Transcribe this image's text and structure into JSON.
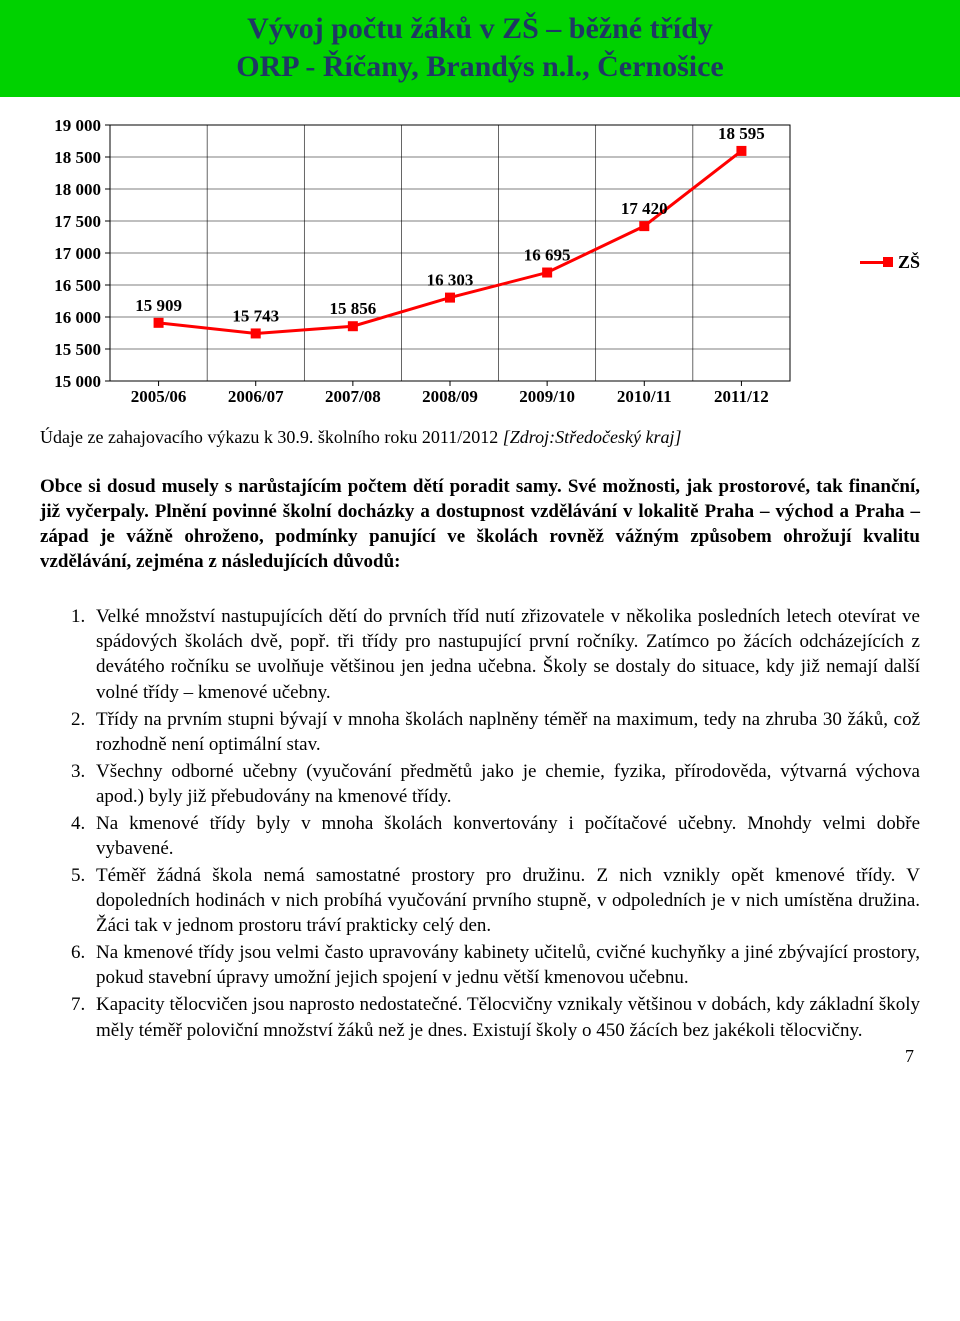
{
  "title": {
    "line1": "Vývoj počtu žáků v ZŠ – běžné třídy",
    "line2": "ORP - Říčany, Brandýs n.l., Černošice",
    "bg_color": "#00d200",
    "text_color": "#1f3864"
  },
  "chart": {
    "type": "line",
    "series_name": "ZŠ",
    "categories": [
      "2005/06",
      "2006/07",
      "2007/08",
      "2008/09",
      "2009/10",
      "2010/11",
      "2011/12"
    ],
    "values": [
      15909,
      15743,
      15856,
      16303,
      16695,
      17420,
      18595
    ],
    "value_labels": [
      "15 909",
      "15 743",
      "15 856",
      "16 303",
      "16 695",
      "17 420",
      "18 595"
    ],
    "ylim": [
      15000,
      19000
    ],
    "ytick_step": 500,
    "ytick_labels": [
      "15 000",
      "15 500",
      "16 000",
      "16 500",
      "17 000",
      "17 500",
      "18 000",
      "18 500",
      "19 000"
    ],
    "line_color": "#ff0000",
    "marker_color": "#ff0000",
    "marker_shape": "square",
    "marker_size": 10,
    "line_width": 3,
    "grid_color": "#000000",
    "background_color": "#ffffff",
    "axis_font_size": 17,
    "label_font_size": 17
  },
  "source": {
    "prefix": "Údaje ze zahajovacího výkazu k 30.9. školního roku 2011/2012 ",
    "italic": "[Zdroj:Středočeský kraj]"
  },
  "intro": "Obce si dosud musely s narůstajícím počtem dětí poradit samy. Své možnosti, jak prostorové, tak finanční, již vyčerpaly. Plnění povinné školní docházky a dostupnost vzdělávání v lokalitě Praha – východ a Praha – západ je vážně ohroženo, podmínky panující ve školách rovněž vážným způsobem ohrožují kvalitu vzdělávání, zejména z následujících důvodů:",
  "reasons": [
    "Velké množství nastupujících dětí do prvních tříd nutí zřizovatele v několika posledních letech otevírat ve spádových školách dvě, popř. tři třídy pro nastupující první ročníky. Zatímco po žácích odcházejících z devátého ročníku se uvolňuje většinou jen jedna učebna. Školy se dostaly do situace, kdy již nemají další volné třídy – kmenové učebny.",
    "Třídy na prvním stupni bývají v mnoha školách naplněny téměř na maximum, tedy na zhruba 30 žáků, což rozhodně není optimální stav.",
    "Všechny odborné učebny (vyučování předmětů jako je chemie, fyzika, přírodověda, výtvarná výchova apod.) byly již přebudovány na kmenové třídy.",
    "Na kmenové třídy byly v mnoha školách konvertovány i počítačové učebny. Mnohdy velmi dobře vybavené.",
    "Téměř žádná škola nemá samostatné prostory pro družinu. Z nich vznikly opět kmenové třídy. V dopoledních hodinách v nich probíhá vyučování prvního stupně, v odpoledních je v nich umístěna družina. Žáci tak v jednom prostoru tráví prakticky celý den.",
    "Na kmenové třídy jsou velmi často upravovány kabinety učitelů, cvičné kuchyňky a jiné zbývající prostory, pokud stavební úpravy umožní jejich spojení v jednu větší kmenovou učebnu.",
    "Kapacity tělocvičen jsou naprosto nedostatečné. Tělocvičny vznikaly většinou v dobách, kdy základní školy měly téměř poloviční množství žáků než je dnes. Existují školy o 450 žácích bez jakékoli tělocvičny."
  ],
  "page_number": "7"
}
